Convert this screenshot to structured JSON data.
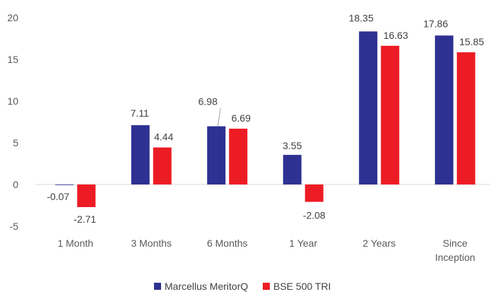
{
  "chart_data": {
    "type": "bar",
    "categories": [
      "1 Month",
      "3 Months",
      "6 Months",
      "1 Year",
      "2 Years",
      "Since\nInception"
    ],
    "series": [
      {
        "name": "Marcellus MeritorQ",
        "color": "#2E3192",
        "values": [
          -0.07,
          7.11,
          6.98,
          3.55,
          18.35,
          17.86
        ],
        "labels": [
          "-0.07",
          "7.11",
          "6.98",
          "3.55",
          "18.35",
          "17.86"
        ]
      },
      {
        "name": "BSE 500 TRI",
        "color": "#ED1C24",
        "values": [
          -2.71,
          4.44,
          6.69,
          -2.08,
          16.63,
          15.85
        ],
        "labels": [
          "-2.71",
          "4.44",
          "6.69",
          "-2.08",
          "16.63",
          "15.85"
        ]
      }
    ],
    "yticks": [
      "20",
      "15",
      "10",
      "5",
      "0",
      "-5"
    ],
    "ylim": [
      -5,
      20
    ],
    "grid": false,
    "legend_position": "bottom",
    "title": "",
    "xlabel": "",
    "ylabel": ""
  }
}
